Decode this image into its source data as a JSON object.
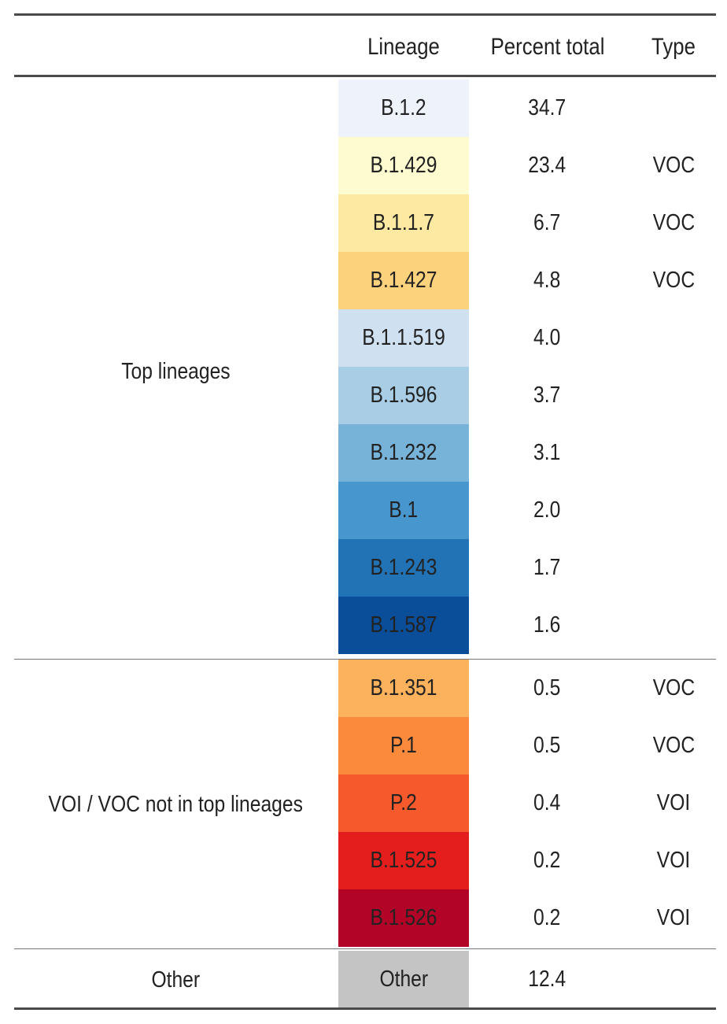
{
  "headers": {
    "lineage": "Lineage",
    "percent": "Percent total",
    "type": "Type"
  },
  "groups": {
    "top": "Top lineages",
    "voi_voc": "VOI / VOC not in top lineages",
    "other": "Other"
  },
  "rows": [
    {
      "lineage": "B.1.2",
      "percent": "34.7",
      "type": "",
      "color": "#eef2fa"
    },
    {
      "lineage": "B.1.429",
      "percent": "23.4",
      "type": "VOC",
      "color": "#fdfbcf"
    },
    {
      "lineage": "B.1.1.7",
      "percent": "6.7",
      "type": "VOC",
      "color": "#fde9a2"
    },
    {
      "lineage": "B.1.427",
      "percent": "4.8",
      "type": "VOC",
      "color": "#fdd27d"
    },
    {
      "lineage": "B.1.1.519",
      "percent": "4.0",
      "type": "",
      "color": "#cfe0f1"
    },
    {
      "lineage": "B.1.596",
      "percent": "3.7",
      "type": "",
      "color": "#a8cde4"
    },
    {
      "lineage": "B.1.232",
      "percent": "3.1",
      "type": "",
      "color": "#77b2d9"
    },
    {
      "lineage": "B.1",
      "percent": "2.0",
      "type": "",
      "color": "#4896ce"
    },
    {
      "lineage": "B.1.243",
      "percent": "1.7",
      "type": "",
      "color": "#2273b6"
    },
    {
      "lineage": "B.1.587",
      "percent": "1.6",
      "type": "",
      "color": "#0a4d98"
    },
    {
      "lineage": "B.1.351",
      "percent": "0.5",
      "type": "VOC",
      "color": "#fcb25c"
    },
    {
      "lineage": "P.1",
      "percent": "0.5",
      "type": "VOC",
      "color": "#fb8a3c"
    },
    {
      "lineage": "P.2",
      "percent": "0.4",
      "type": "VOI",
      "color": "#f65a2c"
    },
    {
      "lineage": "B.1.525",
      "percent": "0.2",
      "type": "VOI",
      "color": "#e31e1c"
    },
    {
      "lineage": "B.1.526",
      "percent": "0.2",
      "type": "VOI",
      "color": "#b10426"
    },
    {
      "lineage": "Other",
      "percent": "12.4",
      "type": "",
      "color": "#c4c4c4"
    }
  ]
}
